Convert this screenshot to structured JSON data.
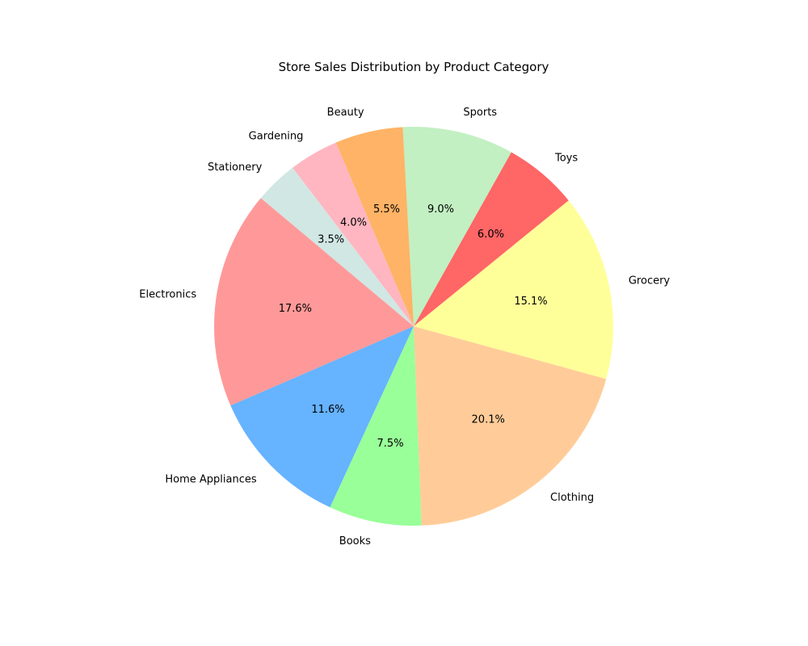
{
  "chart_data": {
    "type": "pie",
    "title": "Store Sales Distribution by Product Category",
    "start_angle_deg": 140,
    "direction": "counterclockwise",
    "slices": [
      {
        "label": "Electronics",
        "value": 17.6,
        "pct_label": "17.6%",
        "color": "#ff9999"
      },
      {
        "label": "Home Appliances",
        "value": 11.6,
        "pct_label": "11.6%",
        "color": "#66b3ff"
      },
      {
        "label": "Books",
        "value": 7.5,
        "pct_label": "7.5%",
        "color": "#99ff99"
      },
      {
        "label": "Clothing",
        "value": 20.1,
        "pct_label": "20.1%",
        "color": "#ffcc99"
      },
      {
        "label": "Grocery",
        "value": 15.1,
        "pct_label": "15.1%",
        "color": "#ffff99"
      },
      {
        "label": "Toys",
        "value": 6.0,
        "pct_label": "6.0%",
        "color": "#ff6666"
      },
      {
        "label": "Sports",
        "value": 9.0,
        "pct_label": "9.0%",
        "color": "#c2f0c2"
      },
      {
        "label": "Beauty",
        "value": 5.5,
        "pct_label": "5.5%",
        "color": "#ffb366"
      },
      {
        "label": "Gardening",
        "value": 4.0,
        "pct_label": "4.0%",
        "color": "#ffb6c1"
      },
      {
        "label": "Stationery",
        "value": 3.5,
        "pct_label": "3.5%",
        "color": "#d1e7e3"
      }
    ]
  }
}
